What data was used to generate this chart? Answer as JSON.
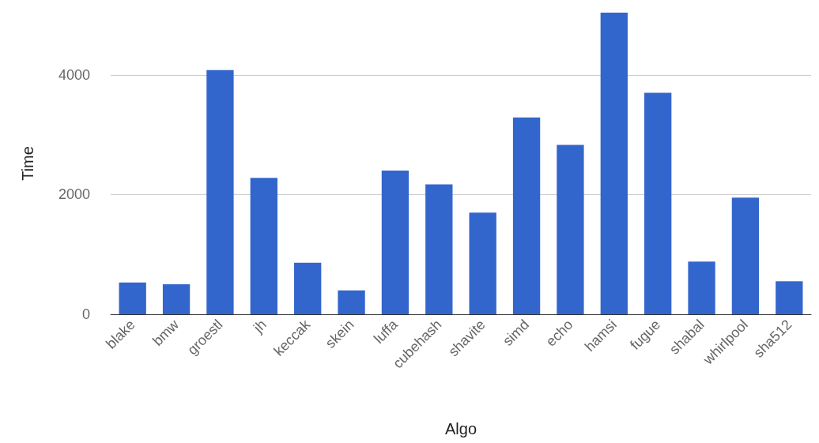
{
  "chart_data": {
    "type": "bar",
    "xlabel": "Algo",
    "ylabel": "Time",
    "categories": [
      "blake",
      "bmw",
      "groestl",
      "jh",
      "keccak",
      "skein",
      "luffa",
      "cubehash",
      "shavite",
      "simd",
      "echo",
      "hamsi",
      "fugue",
      "shabal",
      "whirlpool",
      "sha512"
    ],
    "values": [
      530,
      500,
      4080,
      2280,
      860,
      400,
      2400,
      2170,
      1700,
      3290,
      2830,
      5040,
      3700,
      880,
      1950,
      550
    ],
    "color": "#3366cc",
    "ylim": [
      0,
      5040
    ],
    "yticks": [
      0,
      2000,
      4000
    ],
    "grid": "y"
  }
}
